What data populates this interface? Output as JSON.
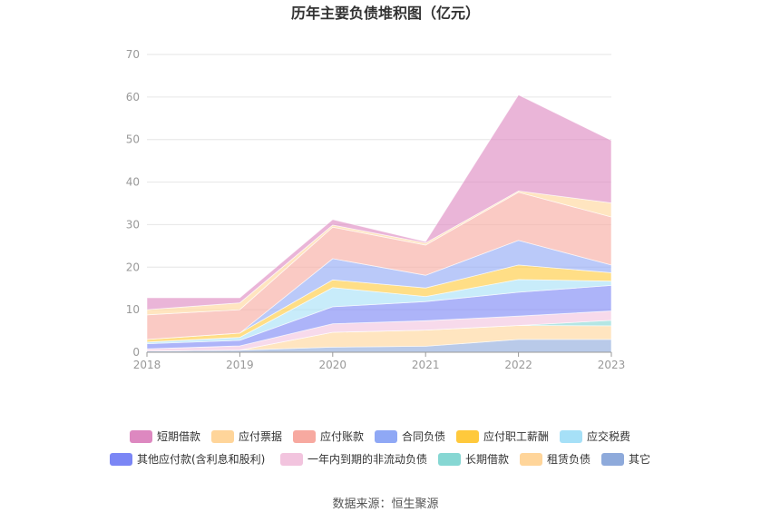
{
  "chart_data": {
    "type": "area",
    "stacked": true,
    "title": "历年主要负债堆积图（亿元）",
    "source": "数据来源：恒生聚源",
    "x": [
      "2018",
      "2019",
      "2020",
      "2021",
      "2022",
      "2023"
    ],
    "ylim": [
      0,
      70
    ],
    "yticks": [
      "0",
      "10",
      "20",
      "30",
      "40",
      "50",
      "60",
      "70"
    ],
    "grid": true,
    "legend_position": "bottom",
    "series": [
      {
        "name": "其它",
        "color": "#8eaadb",
        "values": [
          0.3,
          0.5,
          1.2,
          1.4,
          3.0,
          3.0
        ]
      },
      {
        "name": "租赁负债",
        "color": "#ffd59a",
        "values": [
          0.0,
          0.0,
          3.5,
          3.8,
          3.3,
          3.2
        ]
      },
      {
        "name": "长期借款",
        "color": "#86d7d3",
        "values": [
          0.0,
          0.0,
          0.0,
          0.0,
          0.0,
          1.3
        ]
      },
      {
        "name": "一年内到期的非流动负债",
        "color": "#f2c4de",
        "values": [
          0.5,
          1.0,
          2.0,
          2.2,
          2.2,
          2.2
        ]
      },
      {
        "name": "其他应付款(含利息和股利)",
        "color": "#7b86f5",
        "values": [
          1.2,
          1.3,
          4.0,
          4.5,
          5.6,
          6.0
        ]
      },
      {
        "name": "应交税费",
        "color": "#a6e0f7",
        "values": [
          0.4,
          0.7,
          4.5,
          1.2,
          3.0,
          1.0
        ]
      },
      {
        "name": "应付职工薪酬",
        "color": "#ffc93c",
        "values": [
          0.6,
          1.0,
          1.8,
          2.0,
          3.4,
          2.0
        ]
      },
      {
        "name": "合同负债",
        "color": "#8fa8f5",
        "values": [
          0.0,
          0.0,
          5.0,
          3.0,
          5.8,
          1.8
        ]
      },
      {
        "name": "应付账款",
        "color": "#f7a9a0",
        "values": [
          5.8,
          5.5,
          7.4,
          7.1,
          11.3,
          11.3
        ]
      },
      {
        "name": "应付票据",
        "color": "#ffd59a",
        "values": [
          1.2,
          1.6,
          0.5,
          0.5,
          0.3,
          3.3
        ]
      },
      {
        "name": "短期借款",
        "color": "#dd88c0",
        "values": [
          2.8,
          1.2,
          1.3,
          0.3,
          22.6,
          14.7
        ]
      }
    ],
    "legend_order": [
      "短期借款",
      "应付票据",
      "应付账款",
      "合同负债",
      "应付职工薪酬",
      "应交税费",
      "其他应付款(含利息和股利)",
      "一年内到期的非流动负债",
      "长期借款",
      "租赁负债",
      "其它"
    ]
  }
}
